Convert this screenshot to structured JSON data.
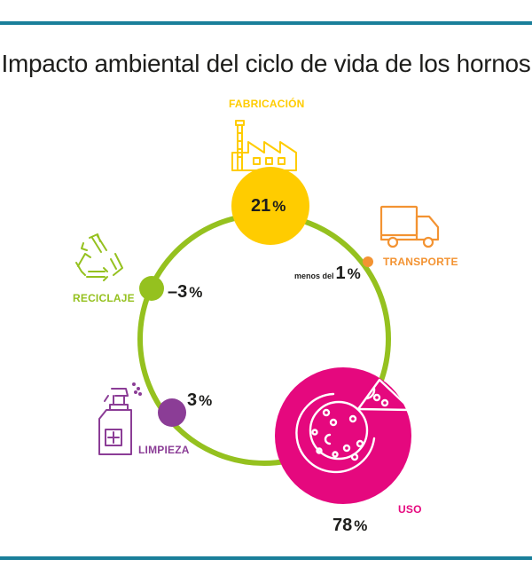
{
  "title": "Impacto ambiental del ciclo de vida de los hornos",
  "stages": {
    "fabricacion": {
      "label": "FABRICACIÓN",
      "value": "21",
      "unit": "%",
      "color": "#ffcc00",
      "icon": "factory-icon"
    },
    "transporte": {
      "label": "TRANSPORTE",
      "prefix": "menos del",
      "value": "1",
      "unit": "%",
      "color": "#f39332",
      "icon": "truck-icon"
    },
    "uso": {
      "label": "USO",
      "value": "78",
      "unit": "%",
      "color": "#e5087e",
      "icon": "pizza-icon"
    },
    "limpieza": {
      "label": "LIMPIEZA",
      "value": "3",
      "unit": "%",
      "color": "#8b3d96",
      "icon": "spray-bottle-icon"
    },
    "reciclaje": {
      "label": "RECICLAJE",
      "value": "–3",
      "unit": "%",
      "color": "#95c11f",
      "icon": "recycle-icon"
    }
  },
  "colors": {
    "ring": "#95c11f",
    "rule": "#1a7f9a"
  }
}
